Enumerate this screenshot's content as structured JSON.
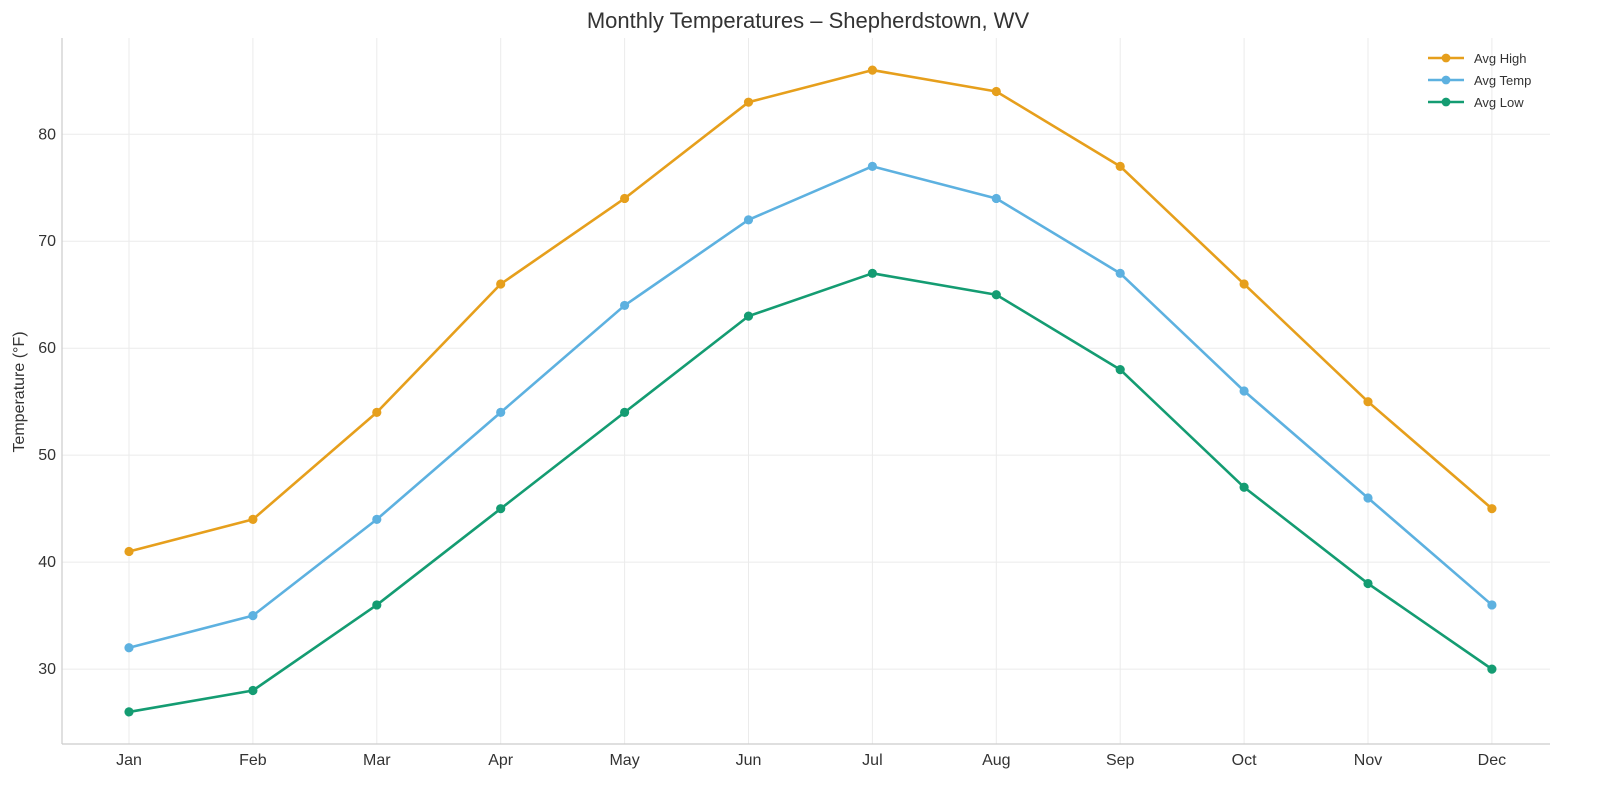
{
  "chart_data": {
    "type": "line",
    "title": "Monthly Temperatures – Shepherdstown, WV",
    "xlabel": "",
    "ylabel": "Temperature (°F)",
    "categories": [
      "Jan",
      "Feb",
      "Mar",
      "Apr",
      "May",
      "Jun",
      "Jul",
      "Aug",
      "Sep",
      "Oct",
      "Nov",
      "Dec"
    ],
    "ylim": [
      23,
      89
    ],
    "yticks": [
      30,
      40,
      50,
      60,
      70,
      80
    ],
    "grid": true,
    "legend_position": "top-right",
    "series": [
      {
        "name": "Avg High",
        "color": "#E69F1C",
        "values": [
          41,
          44,
          54,
          66,
          74,
          83,
          86,
          84,
          77,
          66,
          55,
          45
        ]
      },
      {
        "name": "Avg Temp",
        "color": "#5DB1E0",
        "values": [
          32,
          35,
          44,
          54,
          64,
          72,
          77,
          74,
          67,
          56,
          46,
          36
        ]
      },
      {
        "name": "Avg Low",
        "color": "#149C72",
        "values": [
          26,
          28,
          36,
          45,
          54,
          63,
          67,
          65,
          58,
          47,
          38,
          30
        ]
      }
    ]
  }
}
